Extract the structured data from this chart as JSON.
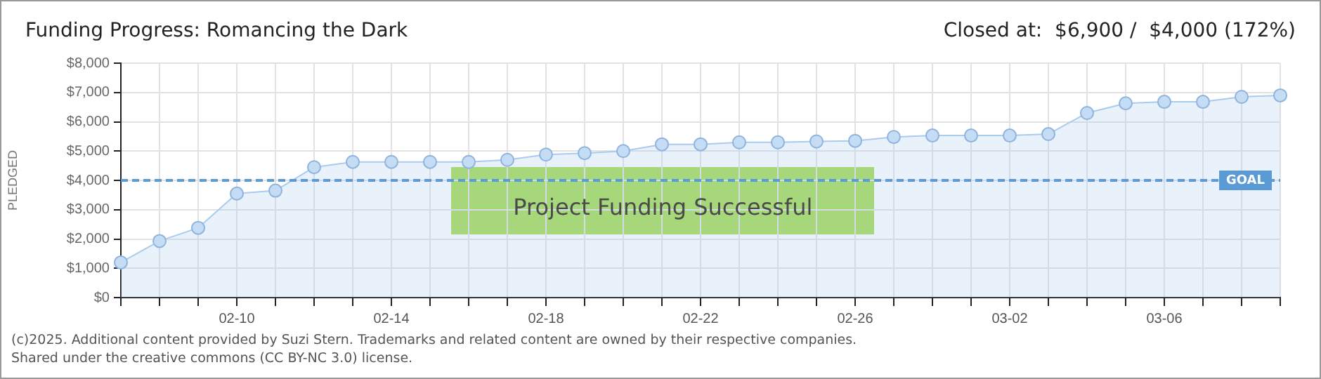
{
  "chart_data": {
    "type": "area",
    "title": "Funding Progress: Romancing the Dark",
    "subtitle": "Closed at:  $6,900 /  $4,000 (172%)",
    "ylabel": "PLEDGED",
    "categories": [
      null,
      null,
      null,
      "02-10",
      null,
      null,
      null,
      "02-14",
      null,
      null,
      null,
      "02-18",
      null,
      null,
      null,
      "02-22",
      null,
      null,
      null,
      "02-26",
      null,
      null,
      null,
      "03-02",
      null,
      null,
      null,
      "03-06",
      null,
      null,
      null
    ],
    "series": [
      {
        "color": "#a9cbee",
        "values": [
          1200,
          1930,
          2380,
          3550,
          3650,
          4450,
          4630,
          4630,
          4630,
          4630,
          4700,
          4880,
          4930,
          5000,
          5230,
          5230,
          5300,
          5300,
          5330,
          5350,
          5480,
          5530,
          5530,
          5530,
          5580,
          6300,
          6630,
          6680,
          6680,
          6850,
          6900
        ]
      }
    ],
    "ylim": [
      0,
      8000
    ],
    "yticks": [
      {
        "value": 0,
        "label": "$0"
      },
      {
        "value": 1000,
        "label": "$1,000"
      },
      {
        "value": 2000,
        "label": "$2,000"
      },
      {
        "value": 3000,
        "label": "$3,000"
      },
      {
        "value": 4000,
        "label": "$4,000"
      },
      {
        "value": 5000,
        "label": "$5,000"
      },
      {
        "value": 6000,
        "label": "$6,000"
      },
      {
        "value": 7000,
        "label": "$7,000"
      },
      {
        "value": 8000,
        "label": "$8,000"
      }
    ],
    "ref_lines": [
      {
        "axis": "y",
        "value": 4000,
        "label": "GOAL",
        "color": "#5b9bd5",
        "line_style": "dashed"
      }
    ],
    "annotations": [
      "Project Funding Successful",
      "(c)2025. Additional content provided by Suzi Stern. Trademarks and related content are owned by their respective companies.",
      "Shared under the creative commons (CC BY-NC 3.0) license."
    ],
    "grid": true,
    "legend": false,
    "marker": "circle",
    "line_style": "solid"
  }
}
